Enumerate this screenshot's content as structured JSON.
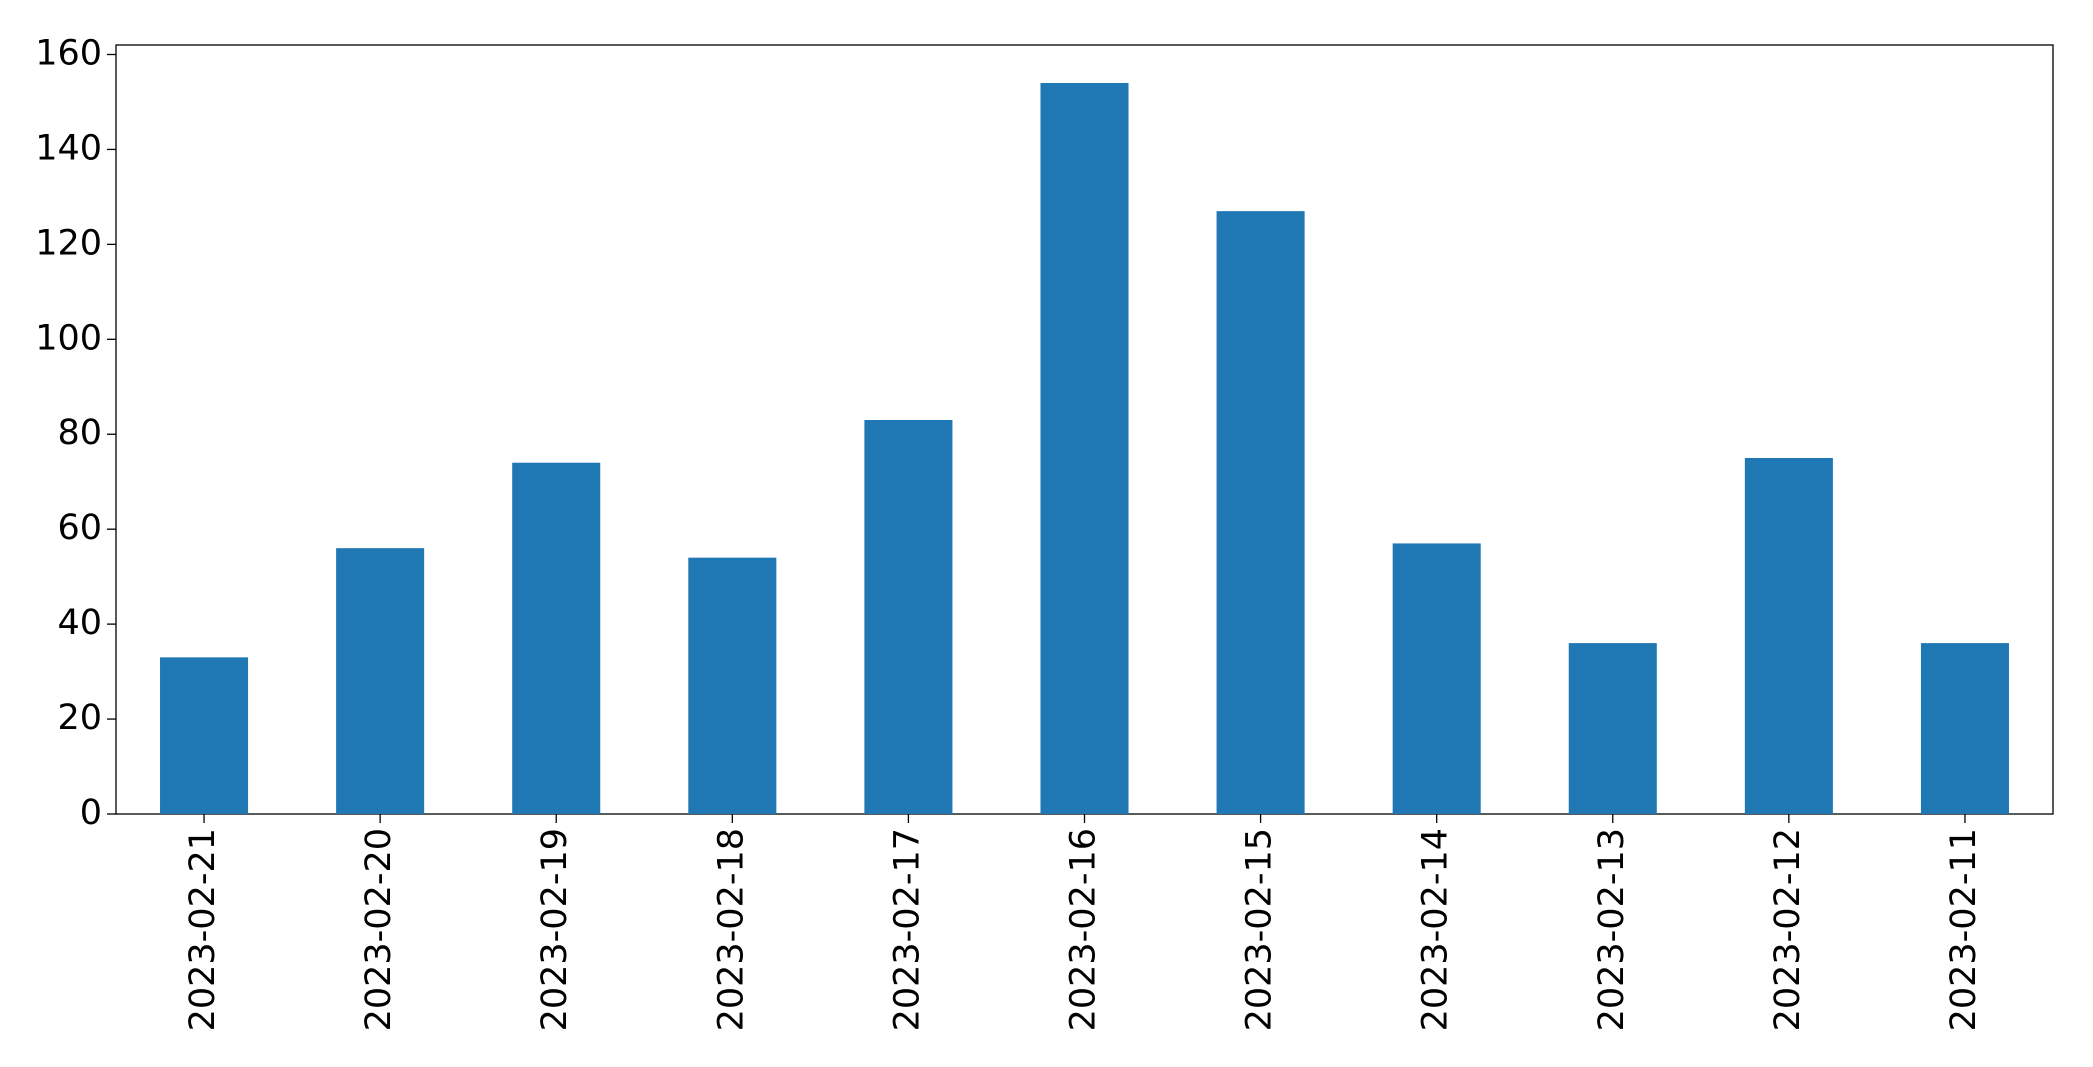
{
  "chart_data": {
    "type": "bar",
    "categories": [
      "2023-02-21",
      "2023-02-20",
      "2023-02-19",
      "2023-02-18",
      "2023-02-17",
      "2023-02-16",
      "2023-02-15",
      "2023-02-14",
      "2023-02-13",
      "2023-02-12",
      "2023-02-11"
    ],
    "values": [
      33,
      56,
      74,
      54,
      83,
      154,
      127,
      57,
      36,
      75,
      36
    ],
    "color": "#1f77b4",
    "ylim": [
      0,
      162
    ],
    "yticks": [
      0,
      20,
      40,
      60,
      80,
      100,
      120,
      140,
      160
    ],
    "grid": false
  }
}
